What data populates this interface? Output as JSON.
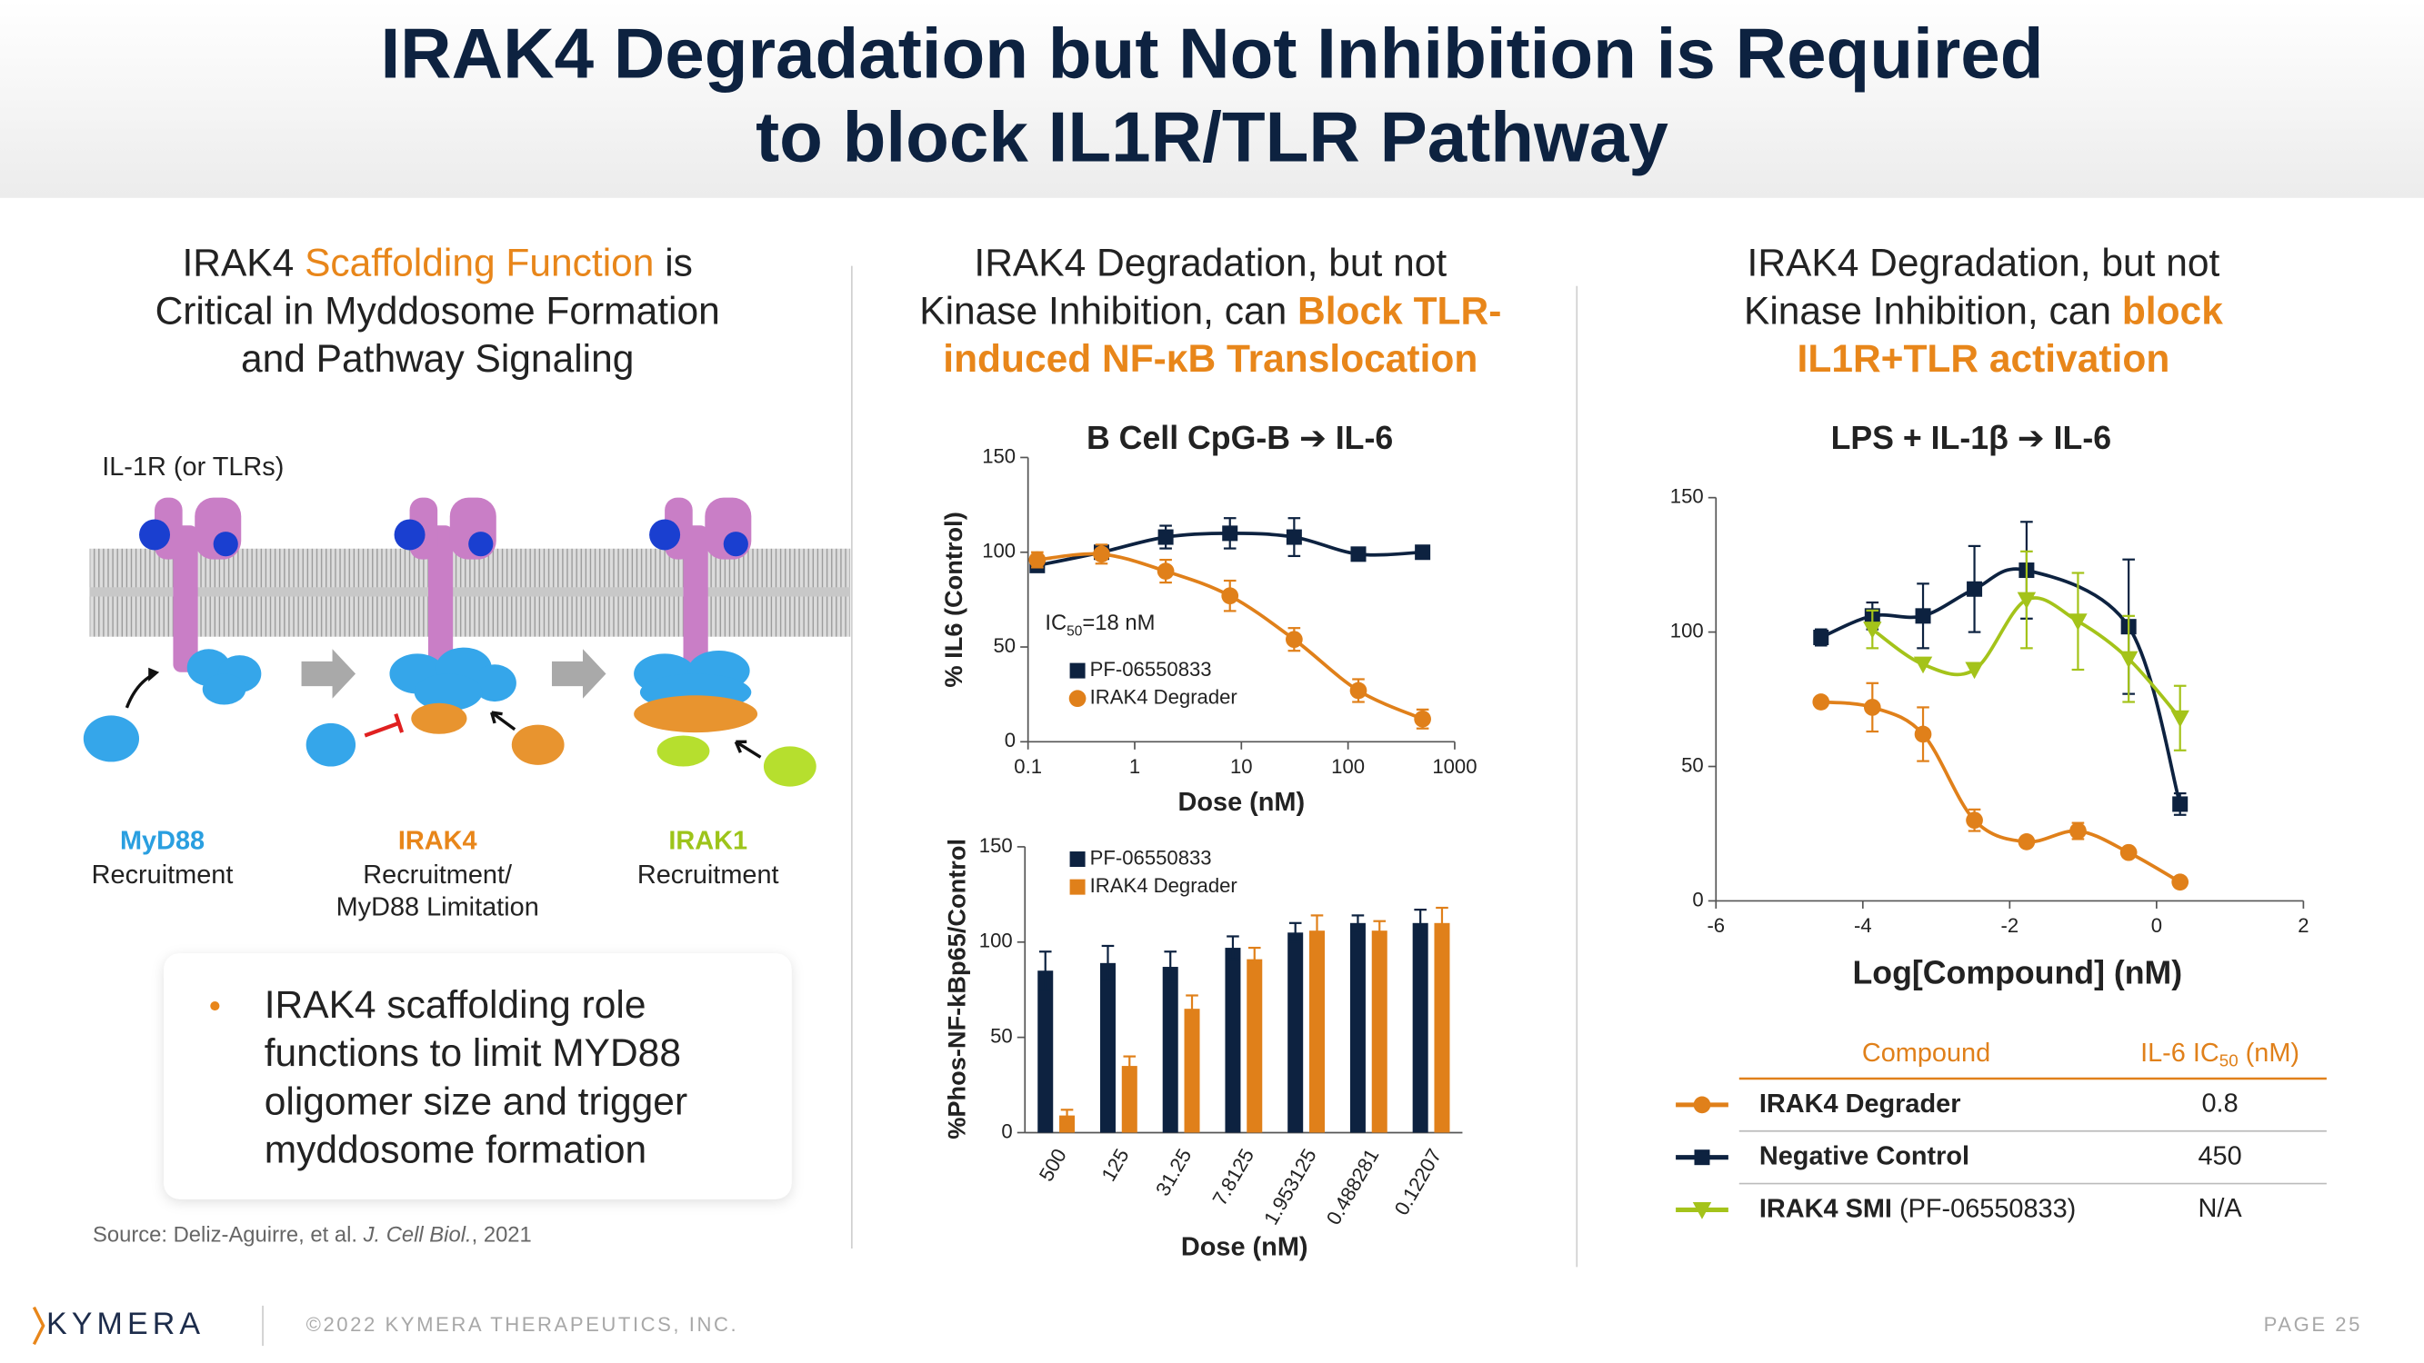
{
  "header": {
    "title": [
      "IRAK4 Degradation but Not Inhibition is Required",
      "to block IL1R/TLR Pathway"
    ]
  },
  "left_panel": {
    "heading": [
      [
        {
          "text": "IRAK4 "
        },
        {
          "text": "Scaffolding Function",
          "color": "#e8861a"
        },
        {
          "text": " is"
        }
      ],
      [
        {
          "text": "Critical in Myddosome Formation"
        }
      ],
      [
        {
          "text": "and Pathway Signaling"
        }
      ]
    ],
    "receptor_label": "IL-1R (or TLRs)",
    "steps": [
      {
        "name": "MyD88",
        "color": "#2a9fe0",
        "caption": [
          "Recruitment"
        ]
      },
      {
        "name": "IRAK4",
        "color": "#e8861a",
        "caption": [
          "Recruitment/",
          "MyD88 Limitation"
        ]
      },
      {
        "name": "IRAK1",
        "color": "#9dc41a",
        "caption": [
          "Recruitment"
        ]
      }
    ],
    "bullet": [
      "IRAK4 scaffolding role",
      "functions to limit MYD88",
      "oligomer size and trigger",
      "myddosome formation"
    ],
    "source": [
      {
        "text": "Source: Deliz-Aguirre, et al. "
      },
      {
        "text": "J. Cell Biol.",
        "italic": true
      },
      {
        "text": ", 2021"
      }
    ]
  },
  "middle_panel": {
    "heading": [
      [
        {
          "text": "IRAK4 Degradation, but not"
        }
      ],
      [
        {
          "text": "Kinase Inhibition, can "
        },
        {
          "text": "Block TLR-",
          "color": "#e8861a",
          "bold": true
        }
      ],
      [
        {
          "text": "induced NF-κB Translocation",
          "color": "#e8861a",
          "bold": true
        }
      ]
    ]
  },
  "right_panel": {
    "heading": [
      [
        {
          "text": "IRAK4 Degradation, but not"
        }
      ],
      [
        {
          "text": "Kinase Inhibition, can "
        },
        {
          "text": "block",
          "color": "#e8861a",
          "bold": true
        }
      ],
      [
        {
          "text": "IL1R+TLR activation",
          "color": "#e8861a",
          "bold": true
        }
      ]
    ],
    "table": {
      "header": [
        [
          {
            "text": "Compound"
          }
        ],
        [
          {
            "text": "IL-6 IC"
          },
          {
            "text": "50",
            "sub": true
          },
          {
            "text": " (nM)"
          }
        ]
      ],
      "rows": [
        {
          "compound": [
            {
              "text": "IRAK4 Degrader",
              "bold": true
            }
          ],
          "ic50": "0.8"
        },
        {
          "compound": [
            {
              "text": "Negative Control",
              "bold": true
            }
          ],
          "ic50": "450"
        },
        {
          "compound": [
            {
              "text": "IRAK4 SMI",
              "bold": true
            },
            {
              "text": " (PF-06550833)"
            }
          ],
          "ic50": "N/A"
        }
      ]
    }
  },
  "chart_data": [
    {
      "type": "line",
      "title": "B Cell CpG-B ➔ IL-6",
      "x_label": "Dose (nM)",
      "y_label": "% IL6 (Control)",
      "x": [
        0.12207,
        0.488281,
        1.953125,
        7.8125,
        31.25,
        125,
        500
      ],
      "xscale": "log",
      "xlim": [
        0.1,
        1000
      ],
      "xticks": [
        0.1,
        1,
        10,
        100,
        1000
      ],
      "ylim": [
        0,
        150
      ],
      "yticks": [
        0,
        50,
        100,
        150
      ],
      "annotation": [
        {
          "text": "IC"
        },
        {
          "text": "50",
          "sub": true
        },
        {
          "text": "=18 nM"
        }
      ],
      "series": [
        {
          "name": "PF-06550833",
          "color": "#0d2240",
          "marker": "square",
          "values": [
            93,
            100,
            108,
            110,
            108,
            99,
            100
          ],
          "errors": [
            null,
            3,
            6,
            8,
            10,
            3,
            null
          ]
        },
        {
          "name": "IRAK4 Degrader",
          "color": "#e0801a",
          "marker": "circle",
          "values": [
            96,
            99,
            90,
            77,
            54,
            27,
            12
          ],
          "errors": [
            4,
            5,
            6,
            8,
            6,
            6,
            5
          ]
        }
      ]
    },
    {
      "type": "bar",
      "x_label": "Dose (nM)",
      "y_label": "%Phos-NF-kBp65/Control",
      "categories": [
        "500",
        "125",
        "31.25",
        "7.8125",
        "1.953125",
        "0.488281",
        "0.12207"
      ],
      "ylim": [
        0,
        150
      ],
      "yticks": [
        0,
        50,
        100,
        150
      ],
      "series": [
        {
          "name": "PF-06550833",
          "color": "#0d2240",
          "values": [
            85,
            89,
            87,
            97,
            105,
            110,
            110
          ],
          "errors": [
            10,
            9,
            8,
            6,
            5,
            4,
            7
          ]
        },
        {
          "name": "IRAK4 Degrader",
          "color": "#e0801a",
          "values": [
            9,
            35,
            65,
            91,
            106,
            106,
            110
          ],
          "errors": [
            3,
            5,
            7,
            6,
            8,
            5,
            8
          ]
        }
      ]
    },
    {
      "type": "line",
      "title": "LPS + IL-1β ➔ IL-6",
      "x_label": "Log[Compound] (nM)",
      "xlim": [
        -6,
        2
      ],
      "xticks": [
        -6,
        -4,
        -2,
        0,
        2
      ],
      "ylim": [
        0,
        150
      ],
      "yticks": [
        0,
        50,
        100,
        150
      ],
      "series": [
        {
          "color": "#e0801a",
          "marker": "circle",
          "x": [
            -4.57,
            -3.87,
            -3.18,
            -2.48,
            -1.77,
            -1.07,
            -0.38,
            0.32
          ],
          "values": [
            74,
            72,
            62,
            30,
            22,
            26,
            18,
            7
          ],
          "errors": [
            null,
            9,
            10,
            4,
            null,
            3,
            null,
            null
          ]
        },
        {
          "color": "#0d2240",
          "marker": "square",
          "x": [
            -4.57,
            -3.87,
            -3.18,
            -2.48,
            -1.77,
            -0.38,
            0.32
          ],
          "values": [
            98,
            106,
            106,
            116,
            123,
            102,
            36
          ],
          "errors": [
            3,
            5,
            12,
            16,
            18,
            25,
            4
          ]
        },
        {
          "color": "#a4c31a",
          "marker": "triangle-down",
          "x": [
            -3.87,
            -3.18,
            -2.48,
            -1.77,
            -1.07,
            -0.38,
            0.32
          ],
          "values": [
            101,
            88,
            86,
            112,
            104,
            90,
            68
          ],
          "errors": [
            7,
            null,
            null,
            18,
            18,
            16,
            12
          ]
        }
      ]
    }
  ],
  "footer": {
    "logo": "KYMERA",
    "copyright": "©2022 KYMERA THERAPEUTICS, INC.",
    "page": "PAGE 25"
  }
}
